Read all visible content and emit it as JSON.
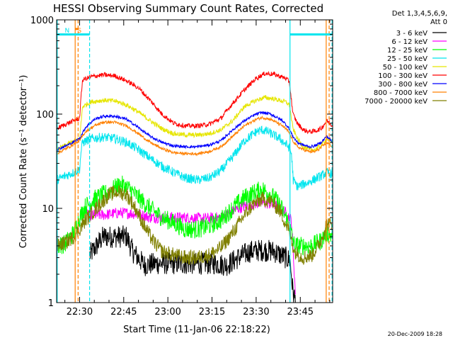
{
  "chart_data": {
    "type": "line",
    "title": "HESSI Observing Summary Count Rates, Corrected",
    "xlabel": "Start Time (11-Jan-06 22:18:22)",
    "ylabel": "Corrected Count Rate (s⁻¹ detector⁻¹)",
    "yscale": "log",
    "ylim": [
      1,
      1000
    ],
    "xlim_minutes": [
      22.2,
      116.0
    ],
    "x_ticks": [
      {
        "label": "22:30",
        "minute": 30
      },
      {
        "label": "22:45",
        "minute": 45
      },
      {
        "label": "23:00",
        "minute": 60
      },
      {
        "label": "23:15",
        "minute": 75
      },
      {
        "label": "23:30",
        "minute": 90
      },
      {
        "label": "23:45",
        "minute": 105
      }
    ],
    "y_ticks": [
      {
        "label": "1",
        "value": 1
      },
      {
        "label": "10",
        "value": 10
      },
      {
        "label": "100",
        "value": 100
      },
      {
        "label": "1000",
        "value": 1000
      }
    ],
    "legend": {
      "position": "right",
      "header": [
        "Det 1,3,4,5,6,9,",
        "Att 0"
      ]
    },
    "markers": [
      {
        "label": "S",
        "color": "#ff8000",
        "minutes": [
          28.5,
          29.5,
          113.8,
          114.8
        ]
      },
      {
        "label": "N",
        "color": "#00e5ee",
        "minutes": [
          22.4,
          33.4,
          101.5,
          115.8
        ]
      }
    ],
    "marker_bars": [
      {
        "color": "#00e5ee",
        "from": 22.2,
        "to": 33.4,
        "value": 700
      },
      {
        "color": "#00e5ee",
        "from": 101.5,
        "to": 115.8,
        "value": 700
      },
      {
        "color": "#ff8000",
        "from": 28.5,
        "to": 29.6,
        "value": 800
      }
    ],
    "series": [
      {
        "name": "3 - 6 keV",
        "color": "#000000",
        "noise": 0.12,
        "points": [
          [
            33.5,
            3.2
          ],
          [
            38,
            5
          ],
          [
            42,
            5
          ],
          [
            46,
            5
          ],
          [
            48,
            3.5
          ],
          [
            52,
            2.5
          ],
          [
            56,
            2.6
          ],
          [
            60,
            2.6
          ],
          [
            64,
            2.6
          ],
          [
            68,
            2.6
          ],
          [
            72,
            2.6
          ],
          [
            76,
            2.6
          ],
          [
            80,
            2.5
          ],
          [
            84,
            3
          ],
          [
            88,
            3.5
          ],
          [
            92,
            3.6
          ],
          [
            96,
            3.5
          ],
          [
            100,
            3
          ],
          [
            101.5,
            2.8
          ],
          [
            102.5,
            1.3
          ],
          [
            103.5,
            1.0
          ]
        ]
      },
      {
        "name": "6 - 12 keV",
        "color": "#ff00ff",
        "noise": 0.06,
        "points": [
          [
            32.5,
            8.5
          ],
          [
            38,
            8.5
          ],
          [
            44,
            9
          ],
          [
            50,
            8.7
          ],
          [
            54,
            8
          ],
          [
            60,
            8
          ],
          [
            66,
            8
          ],
          [
            72,
            7.8
          ],
          [
            78,
            8
          ],
          [
            84,
            10
          ],
          [
            88,
            11
          ],
          [
            92,
            11.5
          ],
          [
            96,
            11
          ],
          [
            100,
            9
          ],
          [
            102,
            7.5
          ],
          [
            103.5,
            1.0
          ]
        ]
      },
      {
        "name": "12 - 25 keV",
        "color": "#00ff00",
        "noise": 0.1,
        "points": [
          [
            22.2,
            4
          ],
          [
            25,
            4.2
          ],
          [
            28,
            5.5
          ],
          [
            30,
            8
          ],
          [
            32,
            10.5
          ],
          [
            35,
            12.5
          ],
          [
            40,
            15
          ],
          [
            44,
            18
          ],
          [
            47,
            16
          ],
          [
            50,
            13
          ],
          [
            54,
            10
          ],
          [
            58,
            8
          ],
          [
            62,
            7
          ],
          [
            66,
            6
          ],
          [
            70,
            6
          ],
          [
            74,
            6.5
          ],
          [
            78,
            7.5
          ],
          [
            82,
            10
          ],
          [
            86,
            13
          ],
          [
            89,
            14.5
          ],
          [
            92,
            16
          ],
          [
            95,
            14
          ],
          [
            98,
            11
          ],
          [
            101,
            7
          ],
          [
            103,
            4
          ],
          [
            106,
            4
          ],
          [
            109,
            4
          ],
          [
            112,
            4.5
          ],
          [
            114,
            5.5
          ],
          [
            116,
            5
          ]
        ]
      },
      {
        "name": "25 - 50 keV",
        "color": "#00e5ee",
        "noise": 0.05,
        "points": [
          [
            22.2,
            20
          ],
          [
            25,
            22
          ],
          [
            28,
            24
          ],
          [
            30,
            26
          ],
          [
            30.5,
            40
          ],
          [
            31,
            50
          ],
          [
            34,
            55
          ],
          [
            38,
            57
          ],
          [
            42,
            55
          ],
          [
            46,
            50
          ],
          [
            50,
            42
          ],
          [
            54,
            34
          ],
          [
            58,
            28
          ],
          [
            62,
            24
          ],
          [
            66,
            21
          ],
          [
            70,
            20
          ],
          [
            74,
            21
          ],
          [
            78,
            25
          ],
          [
            82,
            35
          ],
          [
            86,
            52
          ],
          [
            90,
            65
          ],
          [
            92,
            68
          ],
          [
            94,
            65
          ],
          [
            98,
            55
          ],
          [
            101,
            45
          ],
          [
            102,
            38
          ],
          [
            102.6,
            20
          ],
          [
            104,
            17
          ],
          [
            108,
            19
          ],
          [
            112,
            22
          ],
          [
            114,
            24
          ],
          [
            116,
            23
          ]
        ]
      },
      {
        "name": "50 - 100 keV",
        "color": "#e6e600",
        "noise": 0.025,
        "points": [
          [
            22.2,
            42
          ],
          [
            26,
            48
          ],
          [
            30,
            55
          ],
          [
            30.5,
            80
          ],
          [
            31,
            120
          ],
          [
            34,
            135
          ],
          [
            38,
            140
          ],
          [
            42,
            138
          ],
          [
            46,
            125
          ],
          [
            50,
            105
          ],
          [
            54,
            85
          ],
          [
            58,
            70
          ],
          [
            62,
            62
          ],
          [
            66,
            60
          ],
          [
            70,
            60
          ],
          [
            74,
            62
          ],
          [
            78,
            68
          ],
          [
            82,
            85
          ],
          [
            86,
            120
          ],
          [
            90,
            140
          ],
          [
            93,
            150
          ],
          [
            96,
            145
          ],
          [
            100,
            135
          ],
          [
            101.3,
            125
          ],
          [
            102.5,
            70
          ],
          [
            104,
            55
          ],
          [
            106,
            45
          ],
          [
            108,
            42
          ],
          [
            110,
            42
          ],
          [
            112,
            46
          ],
          [
            114,
            55
          ],
          [
            116,
            50
          ]
        ]
      },
      {
        "name": "100 - 300 keV",
        "color": "#ff0000",
        "noise": 0.025,
        "points": [
          [
            22.2,
            70
          ],
          [
            26,
            80
          ],
          [
            30,
            90
          ],
          [
            30.5,
            150
          ],
          [
            31,
            230
          ],
          [
            34,
            250
          ],
          [
            38,
            260
          ],
          [
            42,
            255
          ],
          [
            46,
            225
          ],
          [
            50,
            190
          ],
          [
            54,
            140
          ],
          [
            58,
            100
          ],
          [
            62,
            80
          ],
          [
            66,
            75
          ],
          [
            70,
            75
          ],
          [
            74,
            78
          ],
          [
            78,
            90
          ],
          [
            82,
            130
          ],
          [
            86,
            180
          ],
          [
            90,
            240
          ],
          [
            93,
            270
          ],
          [
            96,
            265
          ],
          [
            100,
            240
          ],
          [
            101.3,
            220
          ],
          [
            102.5,
            100
          ],
          [
            104,
            80
          ],
          [
            106,
            68
          ],
          [
            108,
            65
          ],
          [
            110,
            66
          ],
          [
            112,
            70
          ],
          [
            114,
            85
          ],
          [
            116,
            75
          ]
        ]
      },
      {
        "name": "300 - 800 keV",
        "color": "#0000ff",
        "noise": 0.015,
        "points": [
          [
            22.2,
            42
          ],
          [
            26,
            47
          ],
          [
            30,
            55
          ],
          [
            32,
            72
          ],
          [
            35,
            88
          ],
          [
            38,
            95
          ],
          [
            42,
            95
          ],
          [
            46,
            88
          ],
          [
            50,
            72
          ],
          [
            54,
            58
          ],
          [
            58,
            50
          ],
          [
            62,
            46
          ],
          [
            66,
            45
          ],
          [
            70,
            45
          ],
          [
            74,
            47
          ],
          [
            78,
            52
          ],
          [
            82,
            68
          ],
          [
            86,
            85
          ],
          [
            90,
            100
          ],
          [
            92,
            104
          ],
          [
            95,
            100
          ],
          [
            99,
            85
          ],
          [
            101,
            72
          ],
          [
            102.5,
            58
          ],
          [
            104,
            50
          ],
          [
            106,
            47
          ],
          [
            108,
            45
          ],
          [
            110,
            46
          ],
          [
            112,
            50
          ],
          [
            114,
            58
          ],
          [
            116,
            50
          ]
        ]
      },
      {
        "name": "800 - 7000 keV",
        "color": "#ff8000",
        "noise": 0.015,
        "points": [
          [
            22.2,
            38
          ],
          [
            26,
            44
          ],
          [
            30,
            52
          ],
          [
            32,
            65
          ],
          [
            35,
            75
          ],
          [
            38,
            82
          ],
          [
            42,
            82
          ],
          [
            46,
            75
          ],
          [
            50,
            62
          ],
          [
            54,
            50
          ],
          [
            58,
            43
          ],
          [
            62,
            39
          ],
          [
            66,
            38
          ],
          [
            70,
            38
          ],
          [
            74,
            40
          ],
          [
            78,
            45
          ],
          [
            82,
            58
          ],
          [
            86,
            75
          ],
          [
            90,
            88
          ],
          [
            92,
            92
          ],
          [
            95,
            88
          ],
          [
            99,
            75
          ],
          [
            101,
            65
          ],
          [
            102.5,
            52
          ],
          [
            104,
            45
          ],
          [
            106,
            42
          ],
          [
            108,
            40
          ],
          [
            110,
            40
          ],
          [
            112,
            44
          ],
          [
            114,
            50
          ],
          [
            116,
            45
          ]
        ]
      },
      {
        "name": "7000 - 20000 keV",
        "color": "#808000",
        "noise": 0.08,
        "points": [
          [
            22.2,
            4
          ],
          [
            25,
            4.3
          ],
          [
            28,
            5
          ],
          [
            30,
            6
          ],
          [
            32,
            7.5
          ],
          [
            35,
            9.5
          ],
          [
            38,
            12
          ],
          [
            40,
            14
          ],
          [
            43,
            15
          ],
          [
            46,
            14
          ],
          [
            49,
            10
          ],
          [
            52,
            6.5
          ],
          [
            55,
            4.5
          ],
          [
            58,
            3.5
          ],
          [
            62,
            3.2
          ],
          [
            66,
            3
          ],
          [
            70,
            3
          ],
          [
            74,
            3.2
          ],
          [
            78,
            3.8
          ],
          [
            82,
            5.5
          ],
          [
            86,
            8.5
          ],
          [
            89,
            11
          ],
          [
            92,
            12.5
          ],
          [
            95,
            12
          ],
          [
            98,
            9.5
          ],
          [
            101,
            6
          ],
          [
            103,
            3.5
          ],
          [
            106,
            3
          ],
          [
            109,
            3.2
          ],
          [
            112,
            4.5
          ],
          [
            114,
            7
          ],
          [
            116,
            6.5
          ]
        ]
      }
    ]
  },
  "footer": {
    "timestamp": "20-Dec-2009 18:28"
  }
}
